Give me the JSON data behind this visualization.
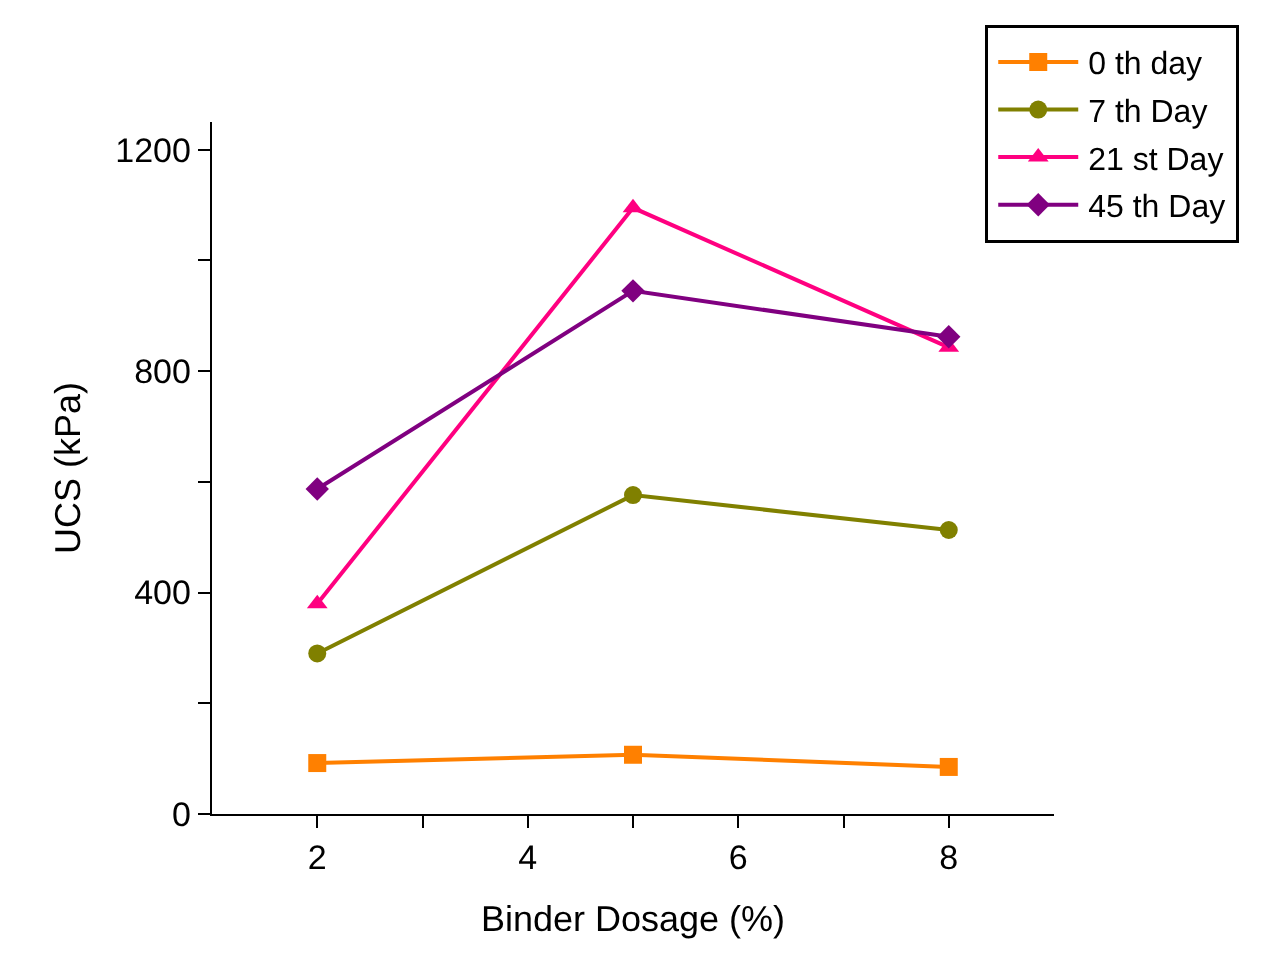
{
  "chart_data": {
    "type": "line",
    "xlabel": "Binder Dosage (%)",
    "ylabel": "UCS (kPa)",
    "x": [
      2,
      5,
      8
    ],
    "xlim": [
      1,
      9
    ],
    "xticks": [
      2,
      {
        "value": 3,
        "label": null
      },
      4,
      {
        "value": 5,
        "label": null
      },
      6,
      {
        "value": 7,
        "label": null
      },
      8
    ],
    "ylim": [
      0,
      1250
    ],
    "yticks": [
      0,
      {
        "value": 200,
        "label": null
      },
      400,
      {
        "value": 600,
        "label": null
      },
      800,
      {
        "value": 1000,
        "label": null
      },
      1200
    ],
    "legend": "top right",
    "line_style": "solid",
    "series": [
      {
        "name": "0 th day",
        "color": "#ff8000",
        "marker": "square",
        "values": [
          92,
          107,
          85
        ]
      },
      {
        "name": "7 th Day",
        "color": "#808000",
        "marker": "circle",
        "values": [
          290,
          576,
          513
        ]
      },
      {
        "name": "21 st Day",
        "color": "#ff0080",
        "marker": "triangle",
        "values": [
          380,
          1095,
          843
        ]
      },
      {
        "name": "45 th Day",
        "color": "#800080",
        "marker": "diamond",
        "values": [
          587,
          945,
          862
        ]
      }
    ]
  }
}
